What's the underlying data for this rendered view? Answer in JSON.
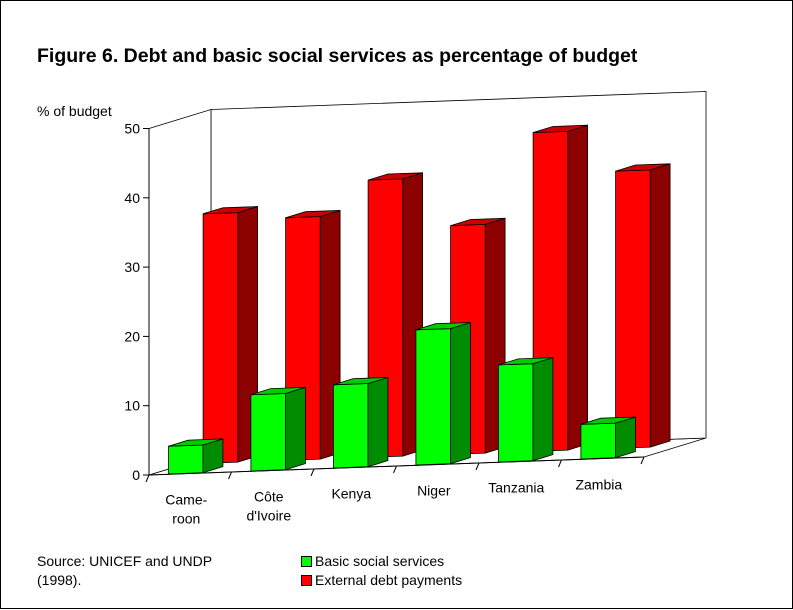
{
  "figure": {
    "title": "Figure 6. Debt and basic social services as percentage of budget",
    "source": "Source: UNICEF and UNDP\n(1998)."
  },
  "legend": {
    "items": [
      {
        "label": "Basic social services",
        "color": "#00ff00"
      },
      {
        "label": "External debt payments",
        "color": "#ff0000"
      }
    ]
  },
  "chart_data": {
    "type": "bar",
    "style": "3d-clustered",
    "title": "Figure 6. Debt and basic social services as percentage of budget",
    "ylabel": "% of budget",
    "xlabel": "",
    "ylim": [
      0,
      50
    ],
    "yticks": [
      0,
      10,
      20,
      30,
      40,
      50
    ],
    "categories": [
      "Came-\nroon",
      "Côte\nd'Ivoire",
      "Kenya",
      "Niger",
      "Tanzania",
      "Zambia"
    ],
    "series": [
      {
        "name": "Basic social services",
        "color": "#00ff00",
        "values": [
          4,
          11,
          12,
          19.5,
          14,
          5
        ]
      },
      {
        "name": "External debt payments",
        "color": "#ff0000",
        "values": [
          36,
          35,
          40,
          33,
          46,
          40
        ]
      }
    ],
    "grid": false,
    "legend_position": "bottom"
  }
}
